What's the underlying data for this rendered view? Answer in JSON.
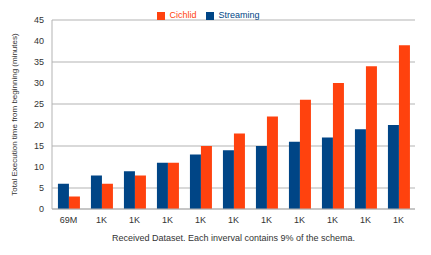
{
  "chart_data": {
    "type": "bar",
    "x_label": "Received Dataset. Each inverval contains 9% of the schema.",
    "y_label": "Total Execution time from beginning (minutes)",
    "categories": [
      "69M",
      "1K",
      "1K",
      "1K",
      "1K",
      "1K",
      "1K",
      "1K",
      "1K",
      "1K",
      "1K"
    ],
    "series": [
      {
        "name": "Streaming",
        "color": "#004586",
        "values": [
          6,
          8,
          9,
          11,
          13,
          14,
          15,
          16,
          17,
          19,
          20
        ]
      },
      {
        "name": "Cichlid",
        "color": "#ff420e",
        "values": [
          3,
          6,
          8,
          11,
          15,
          18,
          22,
          26,
          30,
          34,
          39
        ]
      }
    ],
    "ylim": [
      0,
      45
    ],
    "yticks": [
      0,
      5,
      10,
      15,
      20,
      25,
      30,
      35,
      40,
      45
    ],
    "grid": true,
    "legend": "top"
  }
}
